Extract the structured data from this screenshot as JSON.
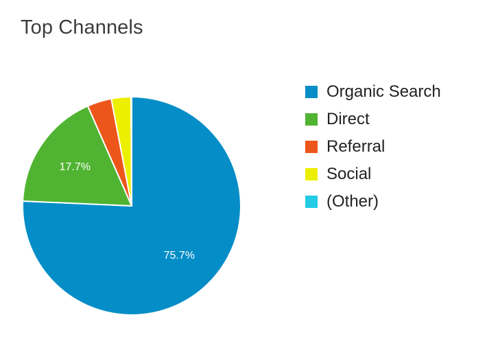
{
  "chart_data": {
    "type": "pie",
    "title": "Top Channels",
    "categories": [
      "Organic Search",
      "Direct",
      "Referral",
      "Social",
      "(Other)"
    ],
    "values": [
      75.7,
      17.7,
      3.6,
      2.9,
      0.1
    ],
    "data_labels": [
      "75.7%",
      "17.7%",
      "",
      "",
      ""
    ],
    "colors": [
      "#058dc7",
      "#50b432",
      "#ed561b",
      "#edef00",
      "#24cbe5"
    ],
    "legend_position": "right",
    "start_angle": "12 o'clock",
    "direction": "clockwise"
  }
}
